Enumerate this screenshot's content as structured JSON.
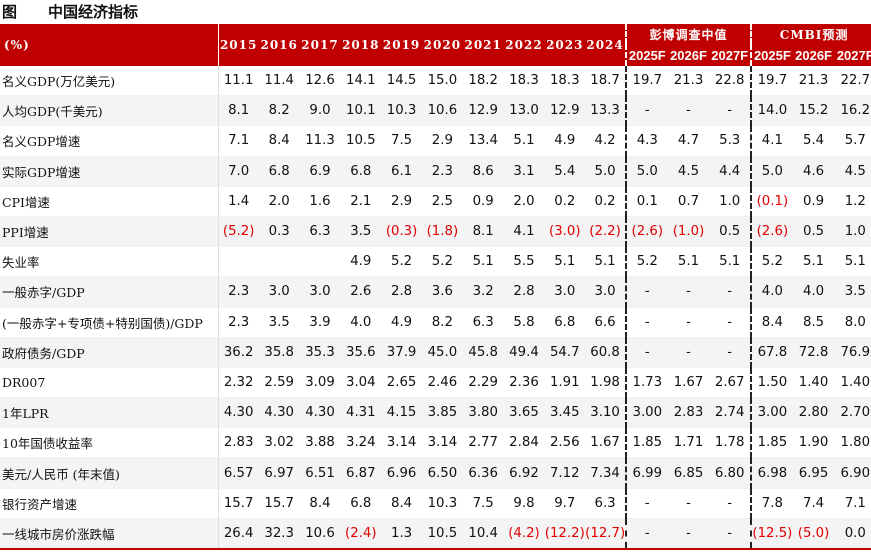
{
  "title": {
    "prefix": "图",
    "text": "中国经济指标"
  },
  "header": {
    "unit": "(%)",
    "years": [
      "2015",
      "2016",
      "2017",
      "2018",
      "2019",
      "2020",
      "2021",
      "2022",
      "2023",
      "2024"
    ],
    "bloomberg_group": "彭博调查中值",
    "bloomberg_years": [
      "2025F",
      "2026F",
      "2027F"
    ],
    "cmbi_group": "CMBI预测",
    "cmbi_years": [
      "2025F",
      "2026F",
      "2027F"
    ]
  },
  "rows": [
    {
      "label": "名义GDP(万亿美元)",
      "values": [
        "11.1",
        "11.4",
        "12.6",
        "14.1",
        "14.5",
        "15.0",
        "18.2",
        "18.3",
        "18.3",
        "18.7",
        "19.7",
        "21.3",
        "22.8",
        "19.7",
        "21.3",
        "22.7"
      ]
    },
    {
      "label": "人均GDP(千美元)",
      "values": [
        "8.1",
        "8.2",
        "9.0",
        "10.1",
        "10.3",
        "10.6",
        "12.9",
        "13.0",
        "12.9",
        "13.3",
        "-",
        "-",
        "-",
        "14.0",
        "15.2",
        "16.2"
      ]
    },
    {
      "label": "名义GDP增速",
      "values": [
        "7.1",
        "8.4",
        "11.3",
        "10.5",
        "7.5",
        "2.9",
        "13.4",
        "5.1",
        "4.9",
        "4.2",
        "4.3",
        "4.7",
        "5.3",
        "4.1",
        "5.4",
        "5.7"
      ]
    },
    {
      "label": "实际GDP增速",
      "values": [
        "7.0",
        "6.8",
        "6.9",
        "6.8",
        "6.1",
        "2.3",
        "8.6",
        "3.1",
        "5.4",
        "5.0",
        "5.0",
        "4.5",
        "4.4",
        "5.0",
        "4.6",
        "4.5"
      ]
    },
    {
      "label": "CPI增速",
      "values": [
        "1.4",
        "2.0",
        "1.6",
        "2.1",
        "2.9",
        "2.5",
        "0.9",
        "2.0",
        "0.2",
        "0.2",
        "0.1",
        "0.7",
        "1.0",
        "(0.1)",
        "0.9",
        "1.2"
      ]
    },
    {
      "label": "PPI增速",
      "values": [
        "(5.2)",
        "0.3",
        "6.3",
        "3.5",
        "(0.3)",
        "(1.8)",
        "8.1",
        "4.1",
        "(3.0)",
        "(2.2)",
        "(2.6)",
        "(1.0)",
        "0.5",
        "(2.6)",
        "0.5",
        "1.0"
      ]
    },
    {
      "label": "失业率",
      "values": [
        "",
        "",
        "",
        "4.9",
        "5.2",
        "5.2",
        "5.1",
        "5.5",
        "5.1",
        "5.1",
        "5.2",
        "5.1",
        "5.1",
        "5.2",
        "5.1",
        "5.1"
      ]
    },
    {
      "label": "一般赤字/GDP",
      "values": [
        "2.3",
        "3.0",
        "3.0",
        "2.6",
        "2.8",
        "3.6",
        "3.2",
        "2.8",
        "3.0",
        "3.0",
        "-",
        "-",
        "-",
        "4.0",
        "4.0",
        "3.5"
      ]
    },
    {
      "label": "(一般赤字+专项债+特别国债)/GDP",
      "values": [
        "2.3",
        "3.5",
        "3.9",
        "4.0",
        "4.9",
        "8.2",
        "6.3",
        "5.8",
        "6.8",
        "6.6",
        "-",
        "-",
        "-",
        "8.4",
        "8.5",
        "8.0"
      ]
    },
    {
      "label": "政府债务/GDP",
      "values": [
        "36.2",
        "35.8",
        "35.3",
        "35.6",
        "37.9",
        "45.0",
        "45.8",
        "49.4",
        "54.7",
        "60.8",
        "-",
        "-",
        "-",
        "67.8",
        "72.8",
        "76.9"
      ]
    },
    {
      "label": "DR007",
      "values": [
        "2.32",
        "2.59",
        "3.09",
        "3.04",
        "2.65",
        "2.46",
        "2.29",
        "2.36",
        "1.91",
        "1.98",
        "1.73",
        "1.67",
        "2.67",
        "1.50",
        "1.40",
        "1.40"
      ]
    },
    {
      "label": "1年LPR",
      "values": [
        "4.30",
        "4.30",
        "4.30",
        "4.31",
        "4.15",
        "3.85",
        "3.80",
        "3.65",
        "3.45",
        "3.10",
        "3.00",
        "2.83",
        "2.74",
        "3.00",
        "2.80",
        "2.70"
      ]
    },
    {
      "label": "10年国债收益率",
      "values": [
        "2.83",
        "3.02",
        "3.88",
        "3.24",
        "3.14",
        "3.14",
        "2.77",
        "2.84",
        "2.56",
        "1.67",
        "1.85",
        "1.71",
        "1.78",
        "1.85",
        "1.90",
        "1.80"
      ]
    },
    {
      "label": "美元/人民币 (年末值)",
      "values": [
        "6.57",
        "6.97",
        "6.51",
        "6.87",
        "6.96",
        "6.50",
        "6.36",
        "6.92",
        "7.12",
        "7.34",
        "6.99",
        "6.85",
        "6.80",
        "6.98",
        "6.95",
        "6.90"
      ]
    },
    {
      "label": "银行资产增速",
      "values": [
        "15.7",
        "15.7",
        "8.4",
        "6.8",
        "8.4",
        "10.3",
        "7.5",
        "9.8",
        "9.7",
        "6.3",
        "-",
        "-",
        "-",
        "7.8",
        "7.4",
        "7.1"
      ]
    },
    {
      "label": "一线城市房价涨跌幅",
      "values": [
        "26.4",
        "32.3",
        "10.6",
        "(2.4)",
        "1.3",
        "10.5",
        "10.4",
        "(4.2)",
        "(12.2)",
        "(12.7)",
        "-",
        "-",
        "-",
        "(12.5)",
        "(5.0)",
        "0.0"
      ]
    }
  ]
}
